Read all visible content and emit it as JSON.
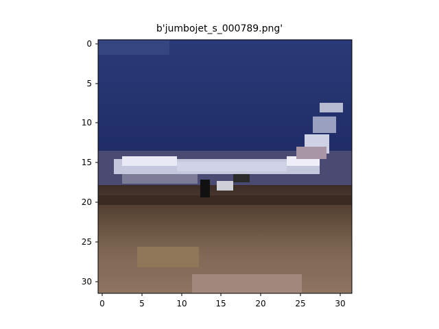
{
  "figure": {
    "title": "b'jumbojet_s_000789.png'"
  },
  "axes": {
    "x_ticks": [
      "0",
      "5",
      "10",
      "15",
      "20",
      "25",
      "30"
    ],
    "y_ticks": [
      "0",
      "5",
      "10",
      "15",
      "20",
      "25",
      "30"
    ]
  },
  "image": {
    "description": "pixelated 32x32 photo of a white jumbo jet on a runway against a dark blue sky",
    "colors": {
      "sky_top": "#2c3e7b",
      "sky_mid": "#1f2e6a",
      "sky_low": "#3a4478",
      "jet_body": "#d9dced",
      "jet_shadow": "#8a8aa0",
      "ground_dark": "#3e2f28",
      "ground_mid": "#7a6652",
      "ground_light": "#9a8068"
    }
  }
}
